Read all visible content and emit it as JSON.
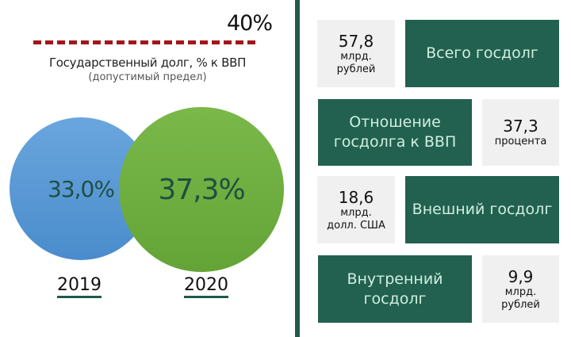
{
  "limit": {
    "value": "40%",
    "title": "Государственный долг, % к ВВП",
    "subtitle": "(допустимый предел)",
    "color": "#a3161a"
  },
  "circles": [
    {
      "year": "2019",
      "value": "33,0%",
      "color": "#5a9ad6"
    },
    {
      "year": "2020",
      "value": "37,3%",
      "color": "#6eae40"
    }
  ],
  "cards": [
    {
      "label": "Всего госдолг",
      "value": "57,8",
      "unit_line1": "млрд.",
      "unit_line2": "рублей"
    },
    {
      "label_line1": "Отношение",
      "label_line2": "госдолга к ВВП",
      "value": "37,3",
      "unit_line1": "процента"
    },
    {
      "label": "Внешний госдолг",
      "value": "18,6",
      "unit_line1": "млрд.",
      "unit_line2": "долл. США"
    },
    {
      "label_line1": "Внутренний",
      "label_line2": "госдолг",
      "value": "9,9",
      "unit_line1": "млрд.",
      "unit_line2": "рублей"
    }
  ],
  "colors": {
    "card_green": "#22614f",
    "card_grey": "#f0f0f0",
    "divider": "#1f5a4a"
  }
}
